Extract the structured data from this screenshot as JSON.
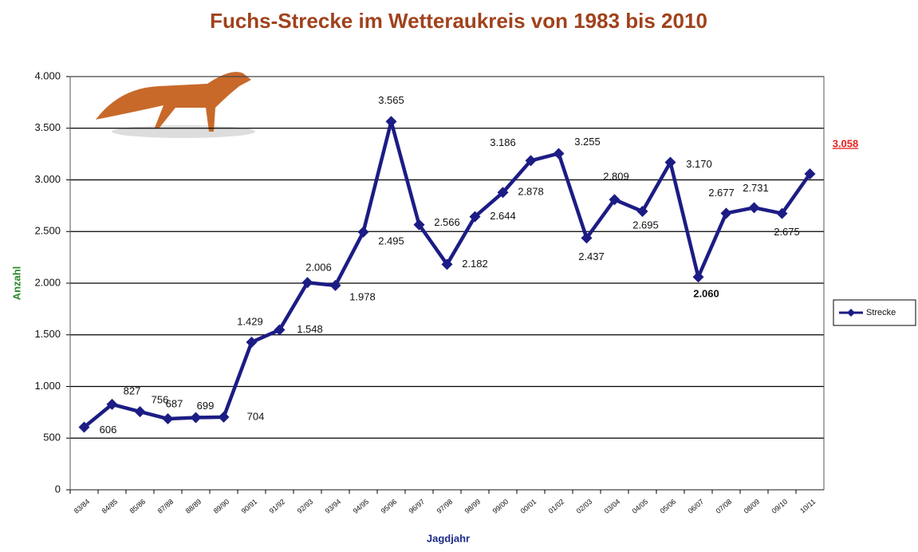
{
  "chart_data": {
    "type": "line",
    "title": "Fuchs-Strecke im Wetteraukreis von 1983 bis 2010",
    "y_label": "Anzahl",
    "x_label": "Jagdjahr",
    "categories": [
      "83/84",
      "84/85",
      "85/86",
      "87/88",
      "88/89",
      "89/90",
      "90/91",
      "91/92",
      "92/93",
      "93/94",
      "94/95",
      "95/96",
      "96/97",
      "97/98",
      "98/99",
      "99/00",
      "00/01",
      "01/02",
      "02/03",
      "03/04",
      "04/05",
      "05/06",
      "06/07",
      "07/08",
      "08/09",
      "09/10",
      "10/11"
    ],
    "series": [
      {
        "name": "Strecke",
        "color": "#1c1c85",
        "values": [
          606,
          827,
          756,
          687,
          699,
          704,
          1429,
          1548,
          2006,
          1978,
          2495,
          3565,
          2566,
          2182,
          2644,
          2878,
          3186,
          3255,
          2437,
          2809,
          2695,
          3170,
          2060,
          2677,
          2731,
          2675,
          3058
        ],
        "value_labels": [
          "606",
          "827",
          "756",
          "687",
          "699",
          "704",
          "1.429",
          "1.548",
          "2.006",
          "1.978",
          "2.495",
          "3.565",
          "2.566",
          "2.182",
          "2.644",
          "2.878",
          "3.186",
          "3.255",
          "2.437",
          "2.809",
          "2.695",
          "3.170",
          "2.060",
          "2.677",
          "2.731",
          "2.675",
          "3.058"
        ]
      }
    ],
    "ylim": [
      0,
      4000
    ],
    "yticks": [
      0,
      500,
      {
        "value": 1000,
        "label": "1.000"
      },
      {
        "value": 1500,
        "label": "1.500"
      },
      {
        "value": 2000,
        "label": "2.000"
      },
      {
        "value": 2500,
        "label": "2.500"
      },
      {
        "value": 3000,
        "label": "3.000"
      },
      {
        "value": 3500,
        "label": "3.500"
      },
      {
        "value": 4000,
        "label": "4.000"
      }
    ],
    "grid": true,
    "legend": "right"
  }
}
